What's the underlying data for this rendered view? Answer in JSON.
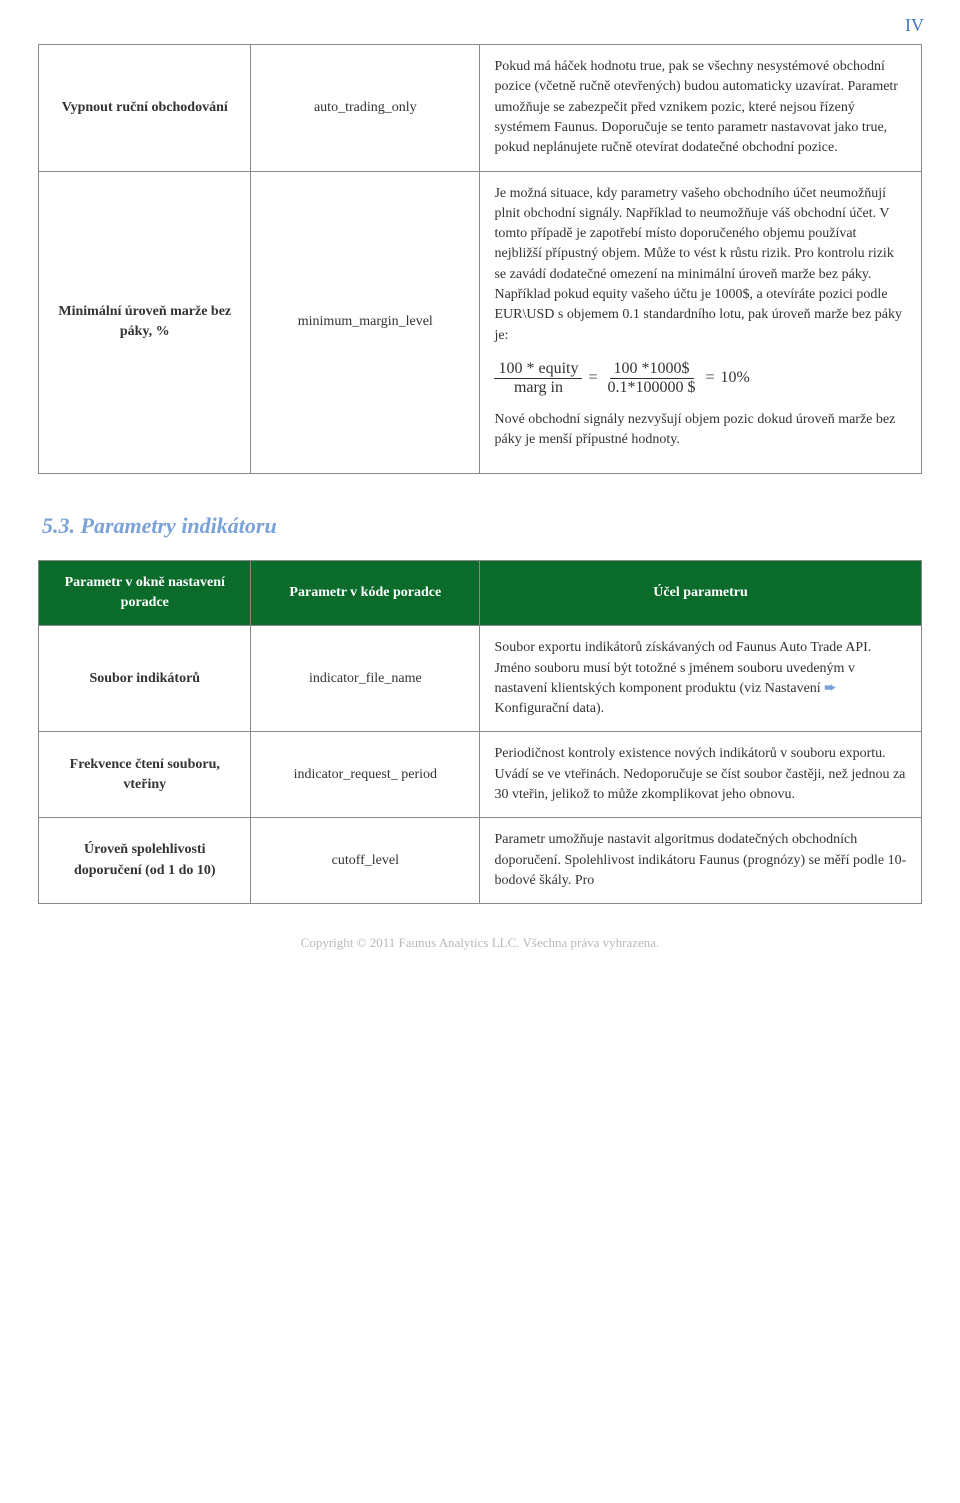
{
  "page_number": "IV",
  "table1": {
    "rows": [
      {
        "c1": "Vypnout ruční obchodování",
        "c2": "auto_trading_only",
        "c3": "Pokud má háček hodnotu true, pak se všechny nesystémové obchodní pozice (včetně ručně otevřených) budou automaticky uzavírat. Parametr umožňuje se zabezpečit před vznikem pozic, které nejsou řízený systémem Faunus. Doporučuje se tento parametr nastavovat jako true, pokud neplánujete ručně otevírat dodatečné obchodní pozice."
      },
      {
        "c1": "Minimální úroveň marže bez páky, %",
        "c2": "minimum_margin_level",
        "c3_p1": "Je možná situace, kdy parametry vašeho obchodního účet neumožňují plnit obchodní signály. Například to neumožňuje váš obchodní účet. V tomto případě je zapotřebí místo doporučeného objemu používat nejbližší přípustný objem. Může to vést k růstu rizik. Pro kontrolu rizik se zavádí dodatečné omezení na minimální úroveň marže bez páky. Například pokud equity vašeho účtu je  1000$, a otevíráte pozici podle EUR\\USD s objemem 0.1 standardního lotu, pak úroveň marže bez páky je:",
        "formula": {
          "num1": "100 * equity",
          "den1": "marg in",
          "eq1": "=",
          "num2": "100 *1000$",
          "den2": "0.1*100000 $",
          "eq2": "=",
          "result": "10%"
        },
        "c3_p2": "Nové obchodní signály nezvyšují objem pozic dokud úroveň marže bez páky je menší přípustné hodnoty."
      }
    ]
  },
  "section_heading": "5.3.  Parametry indikátoru",
  "table2": {
    "headers": {
      "h1": "Parametr v okně nastavení poradce",
      "h2": "Parametr v kóde poradce",
      "h3": "Účel parametru"
    },
    "rows": [
      {
        "c1": "Soubor indikátorů",
        "c2": "indicator_file_name",
        "c3_pre": "Soubor exportu indikátorů získávaných od Faunus Auto Trade API. Jméno souboru musí být totožné s jménem souboru uvedeným v nastavení klientských komponent produktu (viz ",
        "c3_link1": "Nastavení",
        "c3_arrow": " ➨ ",
        "c3_link2": "Konfigurační data",
        "c3_post": ")."
      },
      {
        "c1": "Frekvence čtení souboru, vteřiny",
        "c2": "indicator_request_ period",
        "c3": "Periodičnost kontroly existence nových indikátorů v souboru exportu. Uvádí se ve vteřinách. Nedoporučuje se číst soubor častěji, než jednou za 30 vteřin, jelikož to může zkomplikovat jeho obnovu."
      },
      {
        "c1": "Úroveň spolehlivosti doporučení (od 1 do 10)",
        "c2": "cutoff_level",
        "c3": "Parametr umožňuje nastavit algoritmus dodatečných obchodních doporučení. Spolehlivost indikátoru Faunus (prognózy) se měří podle 10-bodové škály. Pro"
      }
    ]
  },
  "footer": "Copyright © 2011 Faunus Analytics LLC. Všechna práva vyhrazena."
}
